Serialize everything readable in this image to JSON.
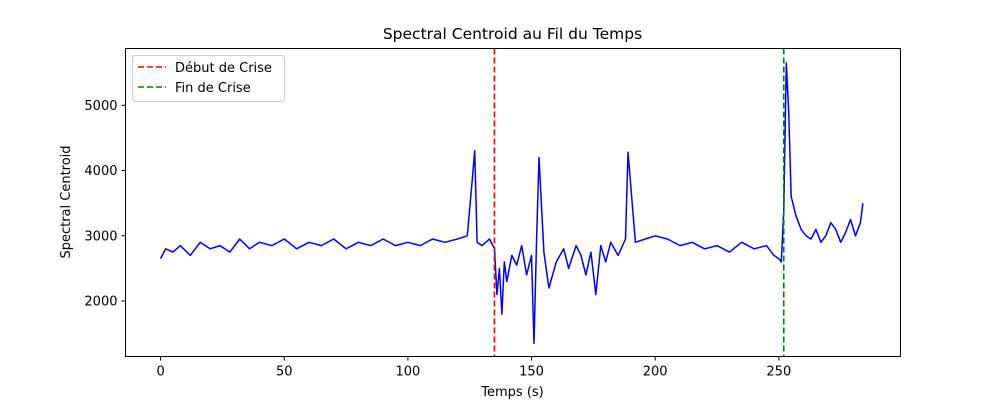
{
  "chart_data": {
    "type": "line",
    "title": "Spectral Centroid au Fil du Temps",
    "xlabel": "Temps (s)",
    "ylabel": "Spectral Centroid",
    "xlim": [
      -14.2,
      299.2
    ],
    "ylim": [
      1150,
      5870
    ],
    "xticks": [
      0,
      50,
      100,
      150,
      200,
      250
    ],
    "yticks": [
      2000,
      3000,
      4000,
      5000
    ],
    "grid": false,
    "legend_position": "top-left",
    "legend": [
      {
        "label": "Début de Crise",
        "color": "#ff0000",
        "style": "dashed"
      },
      {
        "label": "Fin de Crise",
        "color": "#008000",
        "style": "dashed"
      }
    ],
    "vlines": [
      {
        "x": 135,
        "color": "#ff0000",
        "style": "dashed"
      },
      {
        "x": 252,
        "color": "#008000",
        "style": "dashed"
      }
    ],
    "series": [
      {
        "color": "#0000ff",
        "x": [
          0,
          2,
          5,
          8,
          12,
          16,
          20,
          24,
          28,
          32,
          36,
          40,
          45,
          50,
          55,
          60,
          65,
          70,
          75,
          80,
          85,
          90,
          95,
          100,
          105,
          110,
          115,
          120,
          124,
          126,
          127,
          128,
          130,
          133,
          135,
          136,
          137,
          138,
          139,
          140,
          142,
          144,
          146,
          148,
          150,
          151,
          152,
          153,
          155,
          157,
          160,
          163,
          165,
          168,
          170,
          172,
          174,
          176,
          178,
          180,
          182,
          185,
          188,
          189,
          192,
          196,
          200,
          205,
          210,
          215,
          220,
          225,
          230,
          235,
          240,
          245,
          248,
          250,
          251,
          252,
          253,
          254,
          255,
          257,
          259,
          261,
          263,
          265,
          267,
          269,
          271,
          273,
          275,
          277,
          279,
          281,
          283,
          284
        ],
        "y": [
          2650,
          2800,
          2750,
          2850,
          2700,
          2900,
          2800,
          2850,
          2750,
          2950,
          2800,
          2900,
          2850,
          2950,
          2800,
          2900,
          2850,
          2950,
          2800,
          2900,
          2850,
          2950,
          2850,
          2900,
          2850,
          2950,
          2900,
          2950,
          3000,
          3850,
          4300,
          2900,
          2850,
          2950,
          2800,
          2100,
          2500,
          1800,
          2600,
          2300,
          2700,
          2550,
          2850,
          2400,
          2700,
          1350,
          2900,
          4200,
          2750,
          2200,
          2600,
          2800,
          2500,
          2850,
          2700,
          2400,
          2750,
          2100,
          2850,
          2600,
          2900,
          2700,
          2950,
          4280,
          2900,
          2950,
          3000,
          2950,
          2850,
          2900,
          2800,
          2850,
          2750,
          2900,
          2800,
          2850,
          2700,
          2650,
          2600,
          3400,
          5650,
          4900,
          3600,
          3300,
          3100,
          3000,
          2950,
          3100,
          2900,
          3000,
          3200,
          3100,
          2900,
          3050,
          3250,
          3000,
          3200,
          3500
        ]
      }
    ]
  }
}
